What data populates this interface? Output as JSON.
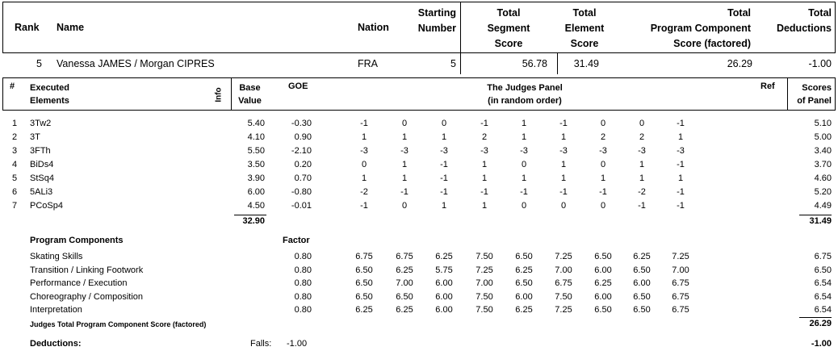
{
  "header": {
    "rank_label": "Rank",
    "name_label": "Name",
    "nation_label": "Nation",
    "starting_number_label": [
      "Starting",
      "Number"
    ],
    "tss_label": [
      "Total",
      "Segment",
      "Score"
    ],
    "tes_label": [
      "Total",
      "Element",
      "Score"
    ],
    "pcs_label": [
      "Total",
      "Program  Component",
      "Score (factored)"
    ],
    "ded_label": [
      "Total",
      "Deductions"
    ]
  },
  "skater": {
    "rank": "5",
    "name": "Vanessa JAMES / Morgan CIPRES",
    "nation": "FRA",
    "starting_number": "5",
    "tss": "56.78",
    "tes": "31.49",
    "pcs": "26.29",
    "deductions": "-1.00"
  },
  "elements_header": {
    "num": "#",
    "executed": [
      "Executed",
      "Elements"
    ],
    "info": "Info",
    "base": [
      "Base",
      "Value"
    ],
    "goe": "GOE",
    "panel": [
      "The Judges Panel",
      "(in random order)"
    ],
    "ref": "Ref",
    "scores": [
      "Scores",
      "of Panel"
    ]
  },
  "elements": [
    {
      "n": "1",
      "name": "3Tw2",
      "base": "5.40",
      "goe": "-0.30",
      "judges": [
        "-1",
        "0",
        "0",
        "-1",
        "1",
        "-1",
        "0",
        "0",
        "-1"
      ],
      "score": "5.10"
    },
    {
      "n": "2",
      "name": "3T",
      "base": "4.10",
      "goe": "0.90",
      "judges": [
        "1",
        "1",
        "1",
        "2",
        "1",
        "1",
        "2",
        "2",
        "1"
      ],
      "score": "5.00"
    },
    {
      "n": "3",
      "name": "3FTh",
      "base": "5.50",
      "goe": "-2.10",
      "judges": [
        "-3",
        "-3",
        "-3",
        "-3",
        "-3",
        "-3",
        "-3",
        "-3",
        "-3"
      ],
      "score": "3.40"
    },
    {
      "n": "4",
      "name": "BiDs4",
      "base": "3.50",
      "goe": "0.20",
      "judges": [
        "0",
        "1",
        "-1",
        "1",
        "0",
        "1",
        "0",
        "1",
        "-1"
      ],
      "score": "3.70"
    },
    {
      "n": "5",
      "name": "StSq4",
      "base": "3.90",
      "goe": "0.70",
      "judges": [
        "1",
        "1",
        "-1",
        "1",
        "1",
        "1",
        "1",
        "1",
        "1"
      ],
      "score": "4.60"
    },
    {
      "n": "6",
      "name": "5ALi3",
      "base": "6.00",
      "goe": "-0.80",
      "judges": [
        "-2",
        "-1",
        "-1",
        "-1",
        "-1",
        "-1",
        "-1",
        "-2",
        "-1"
      ],
      "score": "5.20"
    },
    {
      "n": "7",
      "name": "PCoSp4",
      "base": "4.50",
      "goe": "-0.01",
      "judges": [
        "-1",
        "0",
        "1",
        "1",
        "0",
        "0",
        "0",
        "-1",
        "-1"
      ],
      "score": "4.49"
    }
  ],
  "base_total": "32.90",
  "tes_total": "31.49",
  "components_header": {
    "label": "Program Components",
    "factor": "Factor"
  },
  "components": [
    {
      "name": "Skating Skills",
      "factor": "0.80",
      "judges": [
        "6.75",
        "6.75",
        "6.25",
        "7.50",
        "6.50",
        "7.25",
        "6.50",
        "6.25",
        "7.25"
      ],
      "score": "6.75"
    },
    {
      "name": "Transition / Linking Footwork",
      "factor": "0.80",
      "judges": [
        "6.50",
        "6.25",
        "5.75",
        "7.25",
        "6.25",
        "7.00",
        "6.00",
        "6.50",
        "7.00"
      ],
      "score": "6.50"
    },
    {
      "name": "Performance / Execution",
      "factor": "0.80",
      "judges": [
        "6.50",
        "7.00",
        "6.00",
        "7.00",
        "6.50",
        "6.75",
        "6.25",
        "6.00",
        "6.75"
      ],
      "score": "6.54"
    },
    {
      "name": "Choreography / Composition",
      "factor": "0.80",
      "judges": [
        "6.50",
        "6.50",
        "6.00",
        "7.50",
        "6.00",
        "7.50",
        "6.00",
        "6.50",
        "6.75"
      ],
      "score": "6.54"
    },
    {
      "name": "Interpretation",
      "factor": "0.80",
      "judges": [
        "6.25",
        "6.25",
        "6.00",
        "7.50",
        "6.25",
        "7.25",
        "6.50",
        "6.50",
        "6.75"
      ],
      "score": "6.54"
    }
  ],
  "pcs_total_label": "Judges Total Program Component Score (factored)",
  "pcs_total": "26.29",
  "deductions": {
    "label": "Deductions:",
    "falls_label": "Falls:",
    "falls_value": "-1.00",
    "total": "-1.00"
  }
}
